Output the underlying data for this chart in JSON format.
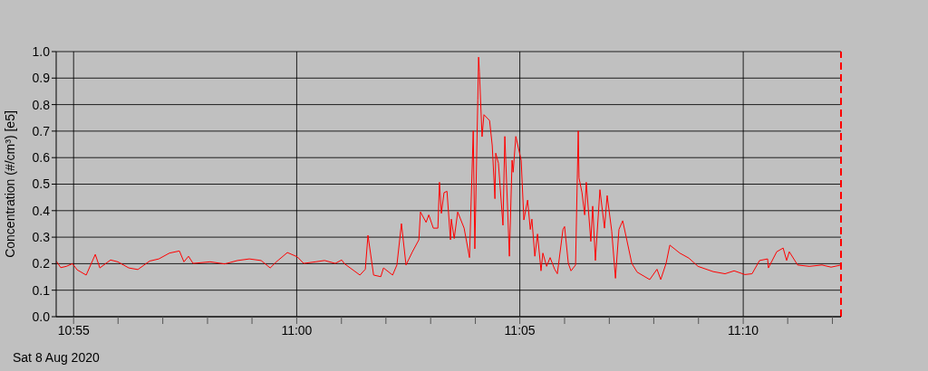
{
  "chart_data": {
    "type": "line",
    "ylabel": "Concentration (#/cm³) [e5]",
    "xlabel": "Sat 8 Aug 2020",
    "grid": true,
    "marker": "none",
    "line_style": "solid",
    "xlim": [
      10.9102,
      11.2032
    ],
    "ylim": [
      0,
      1
    ],
    "xticks": [
      {
        "value": 10.9167,
        "label": "10:55"
      },
      {
        "value": 10.9333,
        "label": null
      },
      {
        "value": 10.95,
        "label": null
      },
      {
        "value": 10.9667,
        "label": null
      },
      {
        "value": 10.9833,
        "label": null
      },
      {
        "value": 11,
        "label": "11:00"
      },
      {
        "value": 11.0167,
        "label": null
      },
      {
        "value": 11.0333,
        "label": null
      },
      {
        "value": 11.05,
        "label": null
      },
      {
        "value": 11.0667,
        "label": null
      },
      {
        "value": 11.0833,
        "label": "11:05"
      },
      {
        "value": 11.1,
        "label": null
      },
      {
        "value": 11.1167,
        "label": null
      },
      {
        "value": 11.1333,
        "label": null
      },
      {
        "value": 11.15,
        "label": null
      },
      {
        "value": 11.1667,
        "label": "11:10"
      },
      {
        "value": 11.1833,
        "label": null
      },
      {
        "value": 11.2,
        "label": null
      }
    ],
    "yticks": [
      {
        "value": 0,
        "label": "0.0"
      },
      0.1,
      0.2,
      0.3,
      0.4,
      0.5,
      0.6,
      0.7,
      0.8,
      0.9,
      {
        "value": 1,
        "label": "1.0"
      }
    ],
    "ref_lines": [
      {
        "axis": "x",
        "value": 11.2032,
        "color": "#ff0000",
        "line_style": "dashed"
      }
    ],
    "series": [
      {
        "color": "#ff0000",
        "x": [
          10.9102,
          10.9119,
          10.914,
          10.9163,
          10.918,
          10.9214,
          10.9248,
          10.9265,
          10.9305,
          10.9332,
          10.9373,
          10.9407,
          10.9451,
          10.9485,
          10.9525,
          10.9562,
          10.9579,
          10.9596,
          10.9613,
          10.9677,
          10.9731,
          10.9779,
          10.9823,
          10.9867,
          10.9901,
          10.9924,
          10.9965,
          11.0002,
          11.0026,
          11.007,
          11.0104,
          11.0144,
          11.0168,
          11.0178,
          11.0236,
          11.0256,
          11.0266,
          11.0287,
          11.0314,
          11.0324,
          11.0358,
          11.0374,
          11.0391,
          11.0408,
          11.0432,
          11.0456,
          11.0462,
          11.0483,
          11.0493,
          11.051,
          11.0527,
          11.0533,
          11.054,
          11.055,
          11.0561,
          11.0574,
          11.0577,
          11.0588,
          11.0601,
          11.0625,
          11.0645,
          11.0659,
          11.0665,
          11.0676,
          11.0679,
          11.0682,
          11.0692,
          11.0699,
          11.072,
          11.073,
          11.074,
          11.0743,
          11.0753,
          11.077,
          11.0777,
          11.0794,
          11.0804,
          11.0808,
          11.0818,
          11.0838,
          11.0848,
          11.0862,
          11.0872,
          11.0878,
          11.0889,
          11.0899,
          11.0912,
          11.0919,
          11.0933,
          11.0946,
          11.0963,
          11.0973,
          11.0994,
          11.1,
          11.1014,
          11.1024,
          11.1041,
          11.1051,
          11.1054,
          11.1065,
          11.1075,
          11.1081,
          11.1098,
          11.1105,
          11.1115,
          11.1132,
          11.1149,
          11.1159,
          11.1176,
          11.119,
          11.1203,
          11.1217,
          11.1251,
          11.1271,
          11.1318,
          11.1345,
          11.1359,
          11.1379,
          11.1393,
          11.143,
          11.1464,
          11.1498,
          11.1555,
          11.1599,
          11.1633,
          11.1673,
          11.17,
          11.1728,
          11.1758,
          11.1761,
          11.1792,
          11.1816,
          11.1829,
          11.1839,
          11.187,
          11.1914,
          11.1961,
          11.1995,
          11.2032
        ],
        "values": [
          0.21,
          0.185,
          0.19,
          0.2,
          0.177,
          0.157,
          0.235,
          0.184,
          0.214,
          0.207,
          0.184,
          0.178,
          0.21,
          0.218,
          0.24,
          0.248,
          0.207,
          0.228,
          0.201,
          0.207,
          0.199,
          0.212,
          0.218,
          0.212,
          0.184,
          0.207,
          0.242,
          0.226,
          0.201,
          0.207,
          0.212,
          0.201,
          0.214,
          0.2,
          0.157,
          0.179,
          0.307,
          0.157,
          0.151,
          0.184,
          0.157,
          0.195,
          0.351,
          0.195,
          0.245,
          0.29,
          0.395,
          0.356,
          0.384,
          0.334,
          0.334,
          0.507,
          0.39,
          0.468,
          0.473,
          0.29,
          0.368,
          0.295,
          0.395,
          0.334,
          0.223,
          0.701,
          0.256,
          0.818,
          0.979,
          0.923,
          0.679,
          0.762,
          0.74,
          0.645,
          0.445,
          0.617,
          0.579,
          0.345,
          0.68,
          0.228,
          0.59,
          0.545,
          0.68,
          0.59,
          0.365,
          0.44,
          0.329,
          0.368,
          0.228,
          0.312,
          0.173,
          0.24,
          0.19,
          0.223,
          0.179,
          0.162,
          0.329,
          0.34,
          0.201,
          0.173,
          0.195,
          0.701,
          0.523,
          0.468,
          0.384,
          0.507,
          0.284,
          0.417,
          0.212,
          0.479,
          0.334,
          0.457,
          0.323,
          0.145,
          0.329,
          0.362,
          0.201,
          0.168,
          0.14,
          0.179,
          0.14,
          0.201,
          0.27,
          0.24,
          0.221,
          0.19,
          0.17,
          0.162,
          0.173,
          0.159,
          0.162,
          0.212,
          0.218,
          0.184,
          0.245,
          0.259,
          0.212,
          0.245,
          0.195,
          0.19,
          0.195,
          0.187,
          0.195
        ]
      }
    ]
  }
}
